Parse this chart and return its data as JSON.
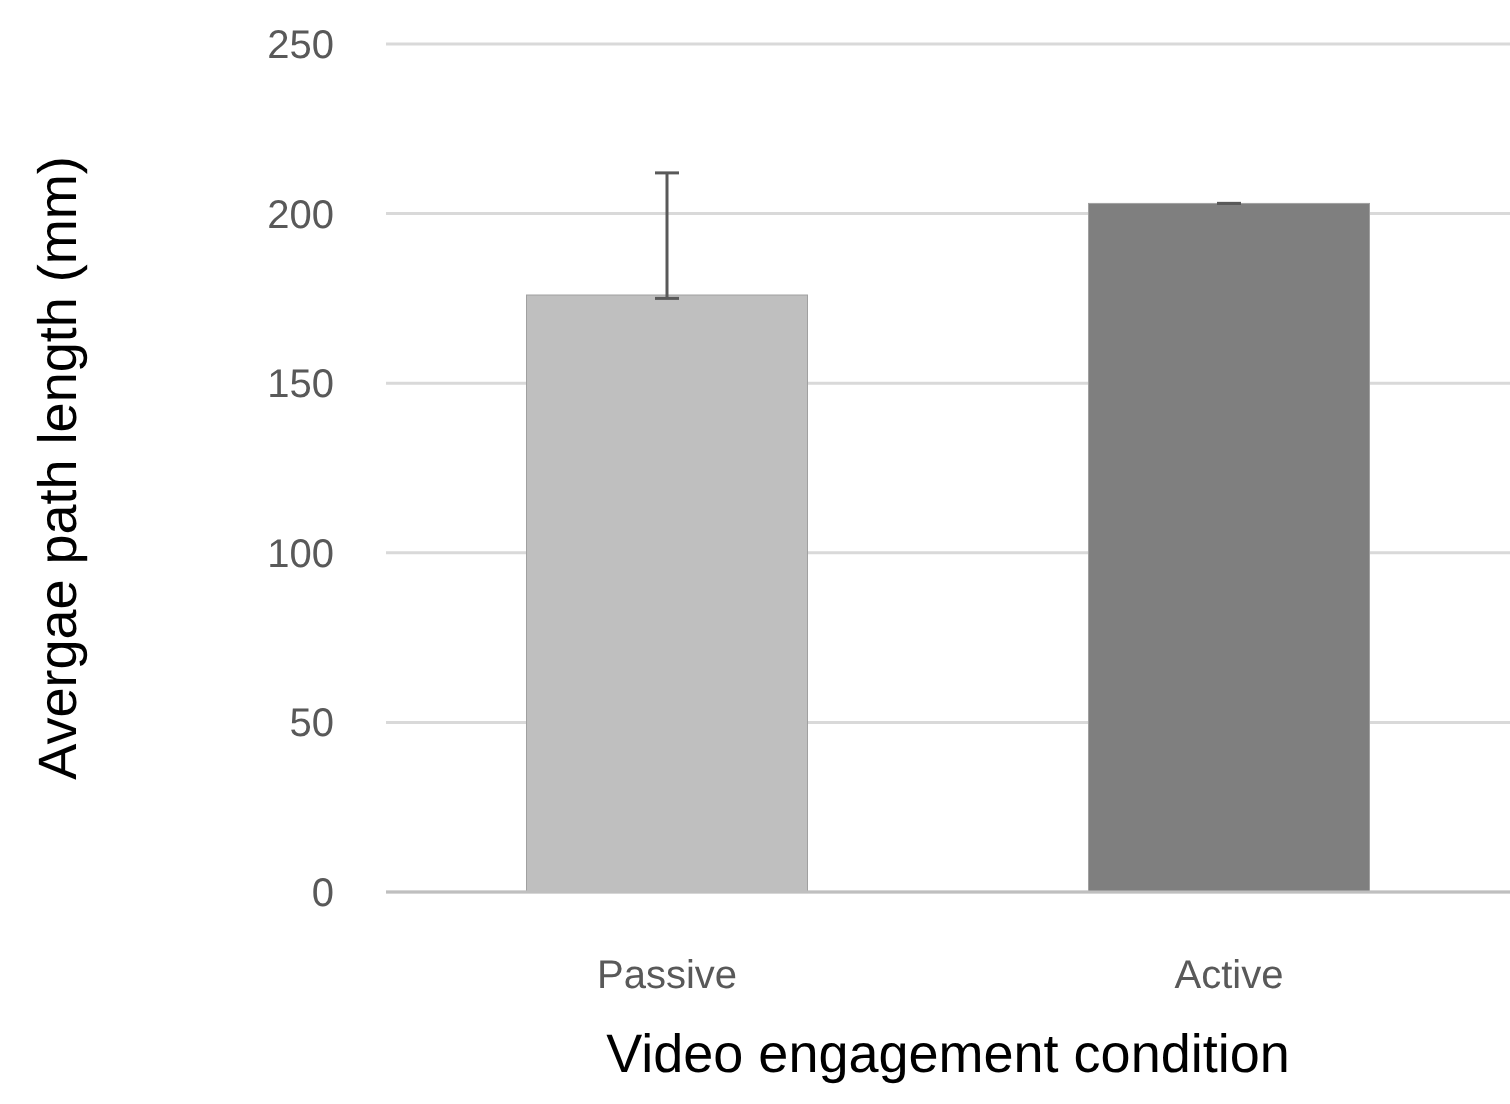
{
  "chart_data": {
    "type": "bar",
    "xlabel": "Video engagement condition",
    "ylabel": "Avergae path length (mm)",
    "categories": [
      "Passive",
      "Active"
    ],
    "values": [
      176,
      203
    ],
    "colors": [
      "#bfbfbf",
      "#7f7f7f"
    ],
    "errors": [
      [
        175,
        212
      ],
      [
        203,
        203
      ]
    ],
    "ylim": [
      0,
      250
    ],
    "yticks": [
      0,
      50,
      100,
      150,
      200,
      250
    ],
    "grid": "y"
  }
}
